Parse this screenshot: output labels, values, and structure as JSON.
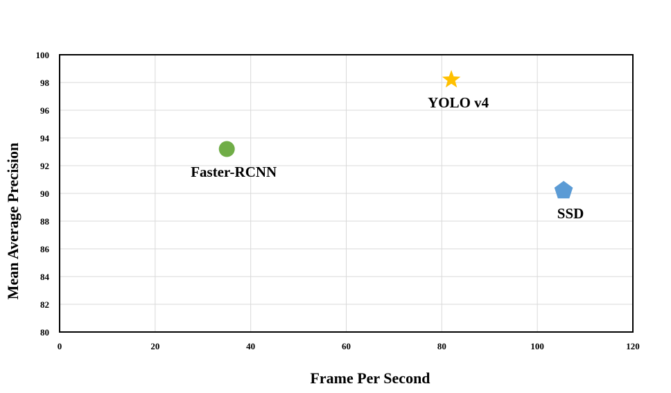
{
  "chart_data": {
    "type": "scatter",
    "title": "",
    "xlabel": "Frame Per Second",
    "ylabel": "Mean Average Precision",
    "xlim": [
      0,
      120
    ],
    "ylim": [
      80,
      100
    ],
    "x_ticks": [
      0,
      20,
      40,
      60,
      80,
      100,
      120
    ],
    "y_ticks": [
      80,
      82,
      84,
      86,
      88,
      90,
      92,
      94,
      96,
      98,
      100
    ],
    "grid": true,
    "legend": "none",
    "points": [
      {
        "label": "Faster-RCNN",
        "x": 35,
        "y": 93.2,
        "marker": "circle",
        "color": "#70ad47"
      },
      {
        "label": "YOLO v4",
        "x": 82,
        "y": 98.2,
        "marker": "star",
        "color": "#ffc000"
      },
      {
        "label": "SSD",
        "x": 105.5,
        "y": 90.2,
        "marker": "pentagon",
        "color": "#5b9bd5"
      }
    ]
  }
}
